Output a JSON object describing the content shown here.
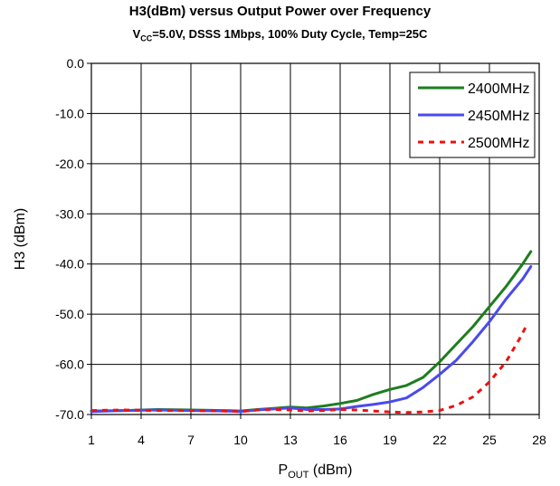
{
  "chart_data": {
    "type": "line",
    "title": "H3(dBm) versus Output Power over Frequency",
    "subtitle": {
      "vcc_main": "V",
      "vcc_sub": "CC",
      "rest": "=5.0V, DSSS 1Mbps, 100% Duty Cycle, Temp=25C"
    },
    "xlabel": {
      "main": "P",
      "sub": "OUT",
      "rest": " (dBm)"
    },
    "ylabel": "H3 (dBm)",
    "xlim": [
      1,
      28
    ],
    "ylim": [
      -70,
      0
    ],
    "xticks": [
      "1",
      "4",
      "7",
      "10",
      "13",
      "16",
      "19",
      "22",
      "25",
      "28"
    ],
    "yticks": [
      "0.0",
      "-10.0",
      "-20.0",
      "-30.0",
      "-40.0",
      "-50.0",
      "-60.0",
      "-70.0"
    ],
    "grid": true,
    "legend_position": "top-right",
    "series": [
      {
        "name": "2400MHz",
        "color": "#1e7d1e",
        "style": "solid",
        "points": [
          [
            1,
            -69.3
          ],
          [
            3,
            -69.2
          ],
          [
            5,
            -69.0
          ],
          [
            7,
            -69.1
          ],
          [
            9,
            -69.2
          ],
          [
            10,
            -69.3
          ],
          [
            11,
            -69.0
          ],
          [
            12,
            -68.8
          ],
          [
            13,
            -68.5
          ],
          [
            14,
            -68.7
          ],
          [
            15,
            -68.3
          ],
          [
            16,
            -67.8
          ],
          [
            17,
            -67.2
          ],
          [
            18,
            -66.0
          ],
          [
            19,
            -65.0
          ],
          [
            20,
            -64.2
          ],
          [
            21,
            -62.6
          ],
          [
            22,
            -59.5
          ],
          [
            23,
            -56.0
          ],
          [
            24,
            -52.5
          ],
          [
            25,
            -48.5
          ],
          [
            26,
            -44.5
          ],
          [
            27,
            -40.0
          ],
          [
            27.5,
            -37.5
          ]
        ]
      },
      {
        "name": "2450MHz",
        "color": "#4a4aef",
        "style": "solid",
        "points": [
          [
            1,
            -69.4
          ],
          [
            3,
            -69.2
          ],
          [
            5,
            -69.1
          ],
          [
            7,
            -69.2
          ],
          [
            9,
            -69.3
          ],
          [
            10,
            -69.4
          ],
          [
            11,
            -69.1
          ],
          [
            12,
            -68.9
          ],
          [
            13,
            -68.7
          ],
          [
            14,
            -69.0
          ],
          [
            15,
            -69.0
          ],
          [
            16,
            -68.9
          ],
          [
            17,
            -68.4
          ],
          [
            18,
            -68.0
          ],
          [
            19,
            -67.5
          ],
          [
            20,
            -66.7
          ],
          [
            21,
            -64.6
          ],
          [
            22,
            -62.0
          ],
          [
            23,
            -59.2
          ],
          [
            24,
            -55.5
          ],
          [
            25,
            -51.5
          ],
          [
            26,
            -47.0
          ],
          [
            27,
            -43.0
          ],
          [
            27.5,
            -40.5
          ]
        ]
      },
      {
        "name": "2500MHz",
        "color": "#ee1111",
        "style": "dashed",
        "points": [
          [
            1,
            -69.2
          ],
          [
            3,
            -69.1
          ],
          [
            5,
            -69.2
          ],
          [
            7,
            -69.2
          ],
          [
            9,
            -69.3
          ],
          [
            10,
            -69.4
          ],
          [
            11,
            -69.1
          ],
          [
            12,
            -69.0
          ],
          [
            13,
            -69.1
          ],
          [
            14,
            -69.3
          ],
          [
            15,
            -69.2
          ],
          [
            16,
            -69.0
          ],
          [
            17,
            -69.1
          ],
          [
            18,
            -69.3
          ],
          [
            19,
            -69.5
          ],
          [
            20,
            -69.6
          ],
          [
            21,
            -69.5
          ],
          [
            22,
            -69.2
          ],
          [
            23,
            -68.2
          ],
          [
            24,
            -66.5
          ],
          [
            25,
            -63.5
          ],
          [
            26,
            -59.5
          ],
          [
            26.8,
            -55.0
          ],
          [
            27.2,
            -52.5
          ]
        ]
      }
    ]
  }
}
